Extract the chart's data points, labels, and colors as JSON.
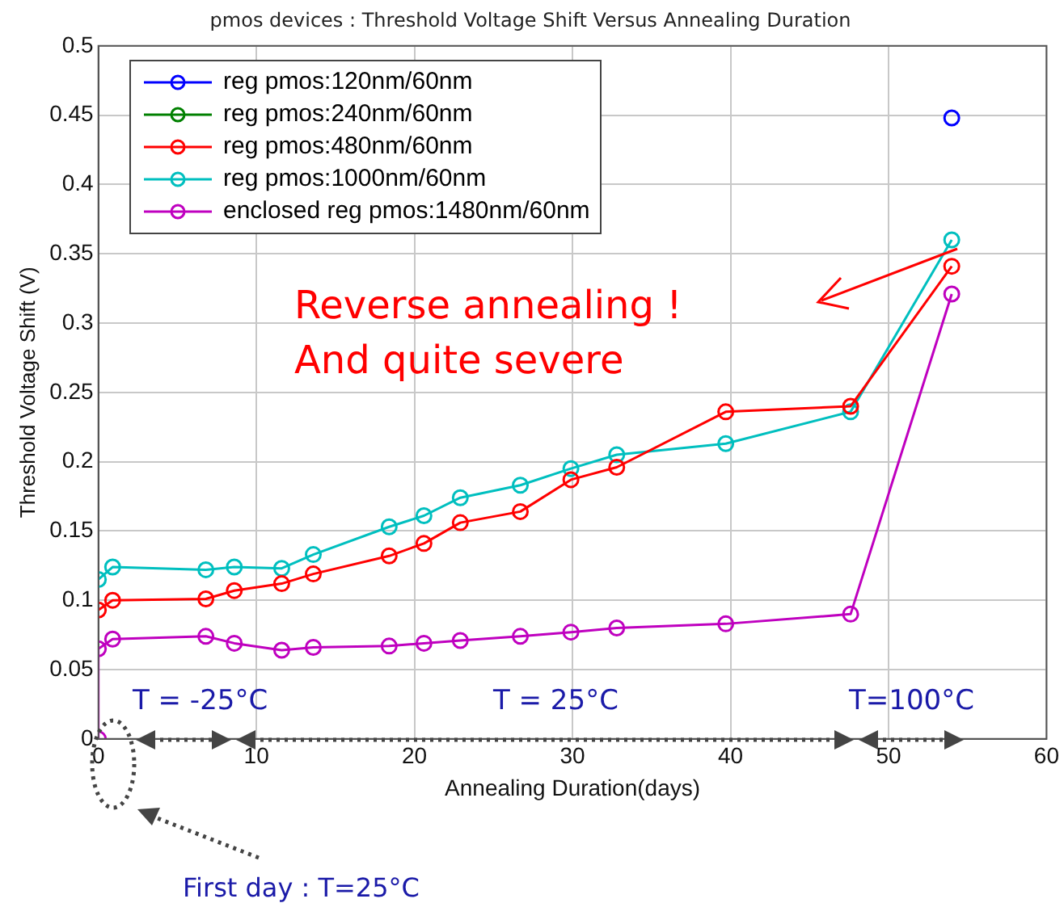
{
  "chart_data": {
    "type": "line",
    "title": "pmos devices : Threshold Voltage Shift Versus Annealing Duration",
    "xlabel": "Annealing Duration(days)",
    "ylabel": "Threshold Voltage Shift (V)",
    "x": [
      0,
      0.9,
      6.8,
      8.6,
      11.6,
      13.6,
      18.4,
      20.6,
      22.9,
      26.7,
      29.9,
      32.8,
      39.7,
      47.6,
      54
    ],
    "series": [
      {
        "name": "reg pmos:120nm/60nm",
        "color": "#0000ff",
        "x": [
          54
        ],
        "values": [
          0.448
        ]
      },
      {
        "name": "reg pmos:240nm/60nm",
        "color": "#008000",
        "values": [
          null,
          null,
          null,
          null,
          null,
          null,
          null,
          null,
          null,
          null,
          null,
          null,
          null,
          null,
          null
        ]
      },
      {
        "name": "reg pmos:480nm/60nm",
        "color": "#ff0000",
        "values": [
          0.093,
          0.1,
          0.101,
          0.107,
          0.112,
          0.119,
          0.132,
          0.141,
          0.156,
          0.164,
          0.187,
          0.196,
          0.236,
          0.24,
          0.341
        ]
      },
      {
        "name": "reg pmos:1000nm/60nm",
        "color": "#00bfbf",
        "values": [
          0.115,
          0.124,
          0.122,
          0.124,
          0.123,
          0.133,
          0.153,
          0.161,
          0.174,
          0.183,
          0.195,
          0.205,
          0.213,
          0.236,
          0.36
        ]
      },
      {
        "name": "enclosed reg pmos:1480nm/60nm",
        "color": "#bf00bf",
        "x": [
          0,
          0,
          0.9,
          6.8,
          8.6,
          11.6,
          13.6,
          18.4,
          20.6,
          22.9,
          26.7,
          29.9,
          32.8,
          39.7,
          47.6,
          54
        ],
        "values": [
          0,
          0.065,
          0.072,
          0.074,
          0.069,
          0.064,
          0.066,
          0.067,
          0.069,
          0.071,
          0.074,
          0.077,
          0.08,
          0.083,
          0.09,
          0.321
        ]
      }
    ],
    "xlim": [
      0,
      60
    ],
    "xticks": [
      0,
      10,
      20,
      30,
      40,
      50,
      60
    ],
    "ylim": [
      0,
      0.5
    ],
    "yticks": [
      0,
      0.05,
      0.1,
      0.15,
      0.2,
      0.25,
      0.3,
      0.35,
      0.4,
      0.45,
      0.5
    ],
    "grid": true,
    "legend": "top left",
    "marker": "circle",
    "line_style": "solid",
    "annotations": [
      "Reverse annealing !\nAnd quite severe",
      "T = -25°C",
      "T = 25°C",
      "T=100°C",
      "First day : T=25°C"
    ]
  }
}
